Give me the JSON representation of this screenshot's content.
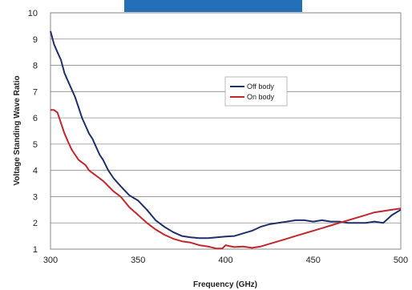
{
  "chart_data": {
    "type": "line",
    "title": "",
    "xlabel": "Frequency (GHz)",
    "ylabel": "Voltage Standing Wave Ratio",
    "xlim": [
      300,
      500
    ],
    "ylim": [
      1,
      10
    ],
    "xticks": [
      300,
      350,
      400,
      450,
      500
    ],
    "yticks": [
      1,
      2,
      3,
      4,
      5,
      6,
      7,
      8,
      9,
      10
    ],
    "grid": "horizontal",
    "legend_position": "center-right",
    "header_bar_color": "#2470b8",
    "series": [
      {
        "name": "Off body",
        "color": "#1f2f6b",
        "x": [
          300,
          302,
          304,
          306,
          308,
          310,
          312,
          314,
          316,
          318,
          320,
          322,
          324,
          326,
          328,
          330,
          333,
          336,
          340,
          345,
          350,
          355,
          360,
          365,
          370,
          375,
          380,
          385,
          390,
          395,
          400,
          405,
          410,
          415,
          420,
          425,
          430,
          435,
          440,
          445,
          450,
          455,
          460,
          465,
          470,
          475,
          480,
          485,
          490,
          495,
          500
        ],
        "y": [
          9.3,
          8.8,
          8.5,
          8.2,
          7.7,
          7.4,
          7.1,
          6.8,
          6.4,
          6.0,
          5.7,
          5.4,
          5.2,
          4.9,
          4.6,
          4.4,
          4.0,
          3.7,
          3.4,
          3.05,
          2.85,
          2.5,
          2.1,
          1.85,
          1.65,
          1.5,
          1.45,
          1.42,
          1.42,
          1.45,
          1.48,
          1.5,
          1.6,
          1.7,
          1.85,
          1.95,
          2.0,
          2.05,
          2.1,
          2.1,
          2.05,
          2.1,
          2.05,
          2.05,
          2.0,
          2.0,
          2.0,
          2.05,
          2.0,
          2.3,
          2.5
        ]
      },
      {
        "name": "On body",
        "color": "#c0282d",
        "x": [
          300,
          302,
          304,
          306,
          308,
          310,
          312,
          314,
          316,
          318,
          320,
          322,
          324,
          326,
          328,
          330,
          333,
          336,
          340,
          345,
          350,
          355,
          360,
          365,
          370,
          375,
          380,
          385,
          390,
          395,
          398,
          400,
          402,
          405,
          410,
          415,
          420,
          425,
          430,
          435,
          440,
          445,
          450,
          455,
          460,
          465,
          470,
          475,
          480,
          485,
          490,
          495,
          500
        ],
        "y": [
          6.3,
          6.3,
          6.2,
          5.8,
          5.4,
          5.1,
          4.8,
          4.6,
          4.4,
          4.3,
          4.2,
          4.0,
          3.9,
          3.8,
          3.7,
          3.6,
          3.4,
          3.2,
          3.0,
          2.6,
          2.3,
          2.0,
          1.75,
          1.55,
          1.4,
          1.3,
          1.25,
          1.15,
          1.1,
          1.02,
          1.02,
          1.15,
          1.12,
          1.08,
          1.1,
          1.05,
          1.1,
          1.2,
          1.3,
          1.4,
          1.5,
          1.6,
          1.7,
          1.8,
          1.9,
          2.0,
          2.1,
          2.2,
          2.3,
          2.4,
          2.45,
          2.5,
          2.55
        ]
      }
    ]
  }
}
